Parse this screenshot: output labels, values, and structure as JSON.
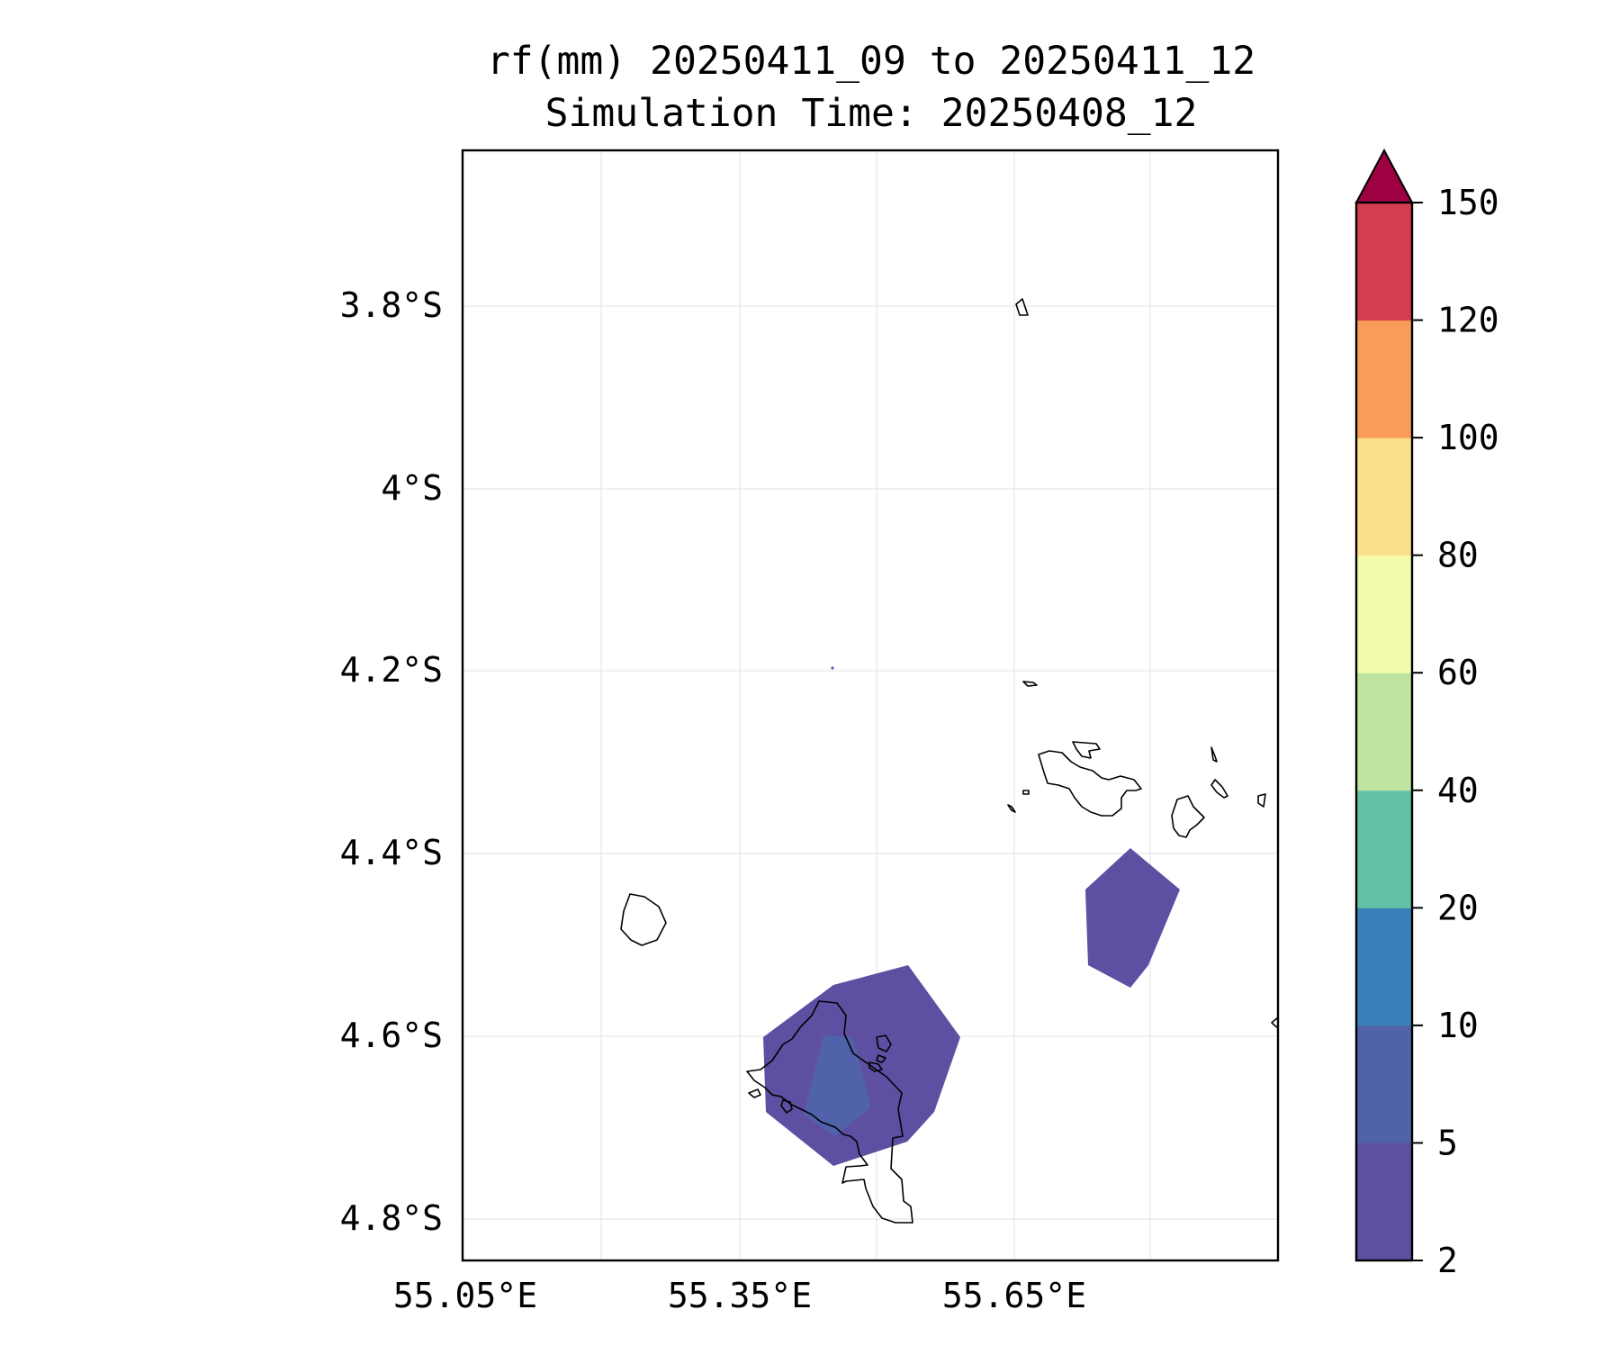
{
  "title": {
    "line1": "rf(mm) 20250411_09 to 20250411_12",
    "line2": "Simulation Time: 20250408_12"
  },
  "map": {
    "lat_ticks": [
      "3.8°S",
      "4°S",
      "4.2°S",
      "4.4°S",
      "4.6°S",
      "4.8°S"
    ],
    "lon_ticks": [
      "55.05°E",
      "55.35°E",
      "55.65°E"
    ]
  },
  "colorbar": {
    "levels": [
      "2",
      "5",
      "10",
      "20",
      "40",
      "60",
      "80",
      "100",
      "120",
      "150"
    ],
    "colors": [
      "#5e4fa2",
      "#4f62aa",
      "#3a80b9",
      "#63c1a6",
      "#bde4a0",
      "#f3fbaa",
      "#fcdf8b",
      "#f99b59",
      "#d43d4f",
      "#9e0142"
    ],
    "extend": "max"
  },
  "rain_areas": [
    {
      "name": "southern-rain-area",
      "category": "2-5 mm",
      "color": "#5e4fa2"
    },
    {
      "name": "southern-rain-core",
      "category": "5-10 mm",
      "color": "#4f62aa"
    },
    {
      "name": "eastern-rain-area",
      "category": "2-5 mm",
      "color": "#5e4fa2"
    }
  ]
}
